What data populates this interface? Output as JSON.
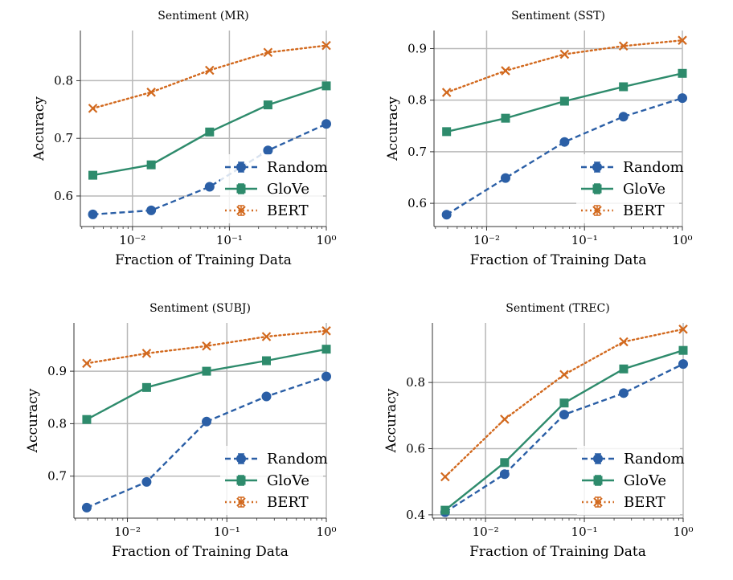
{
  "chart_data": [
    {
      "type": "line",
      "title": "Sentiment (MR)",
      "xlabel": "Fraction of Training Data",
      "ylabel": "Accuracy",
      "xscale": "log",
      "x": [
        0.0039,
        0.0156,
        0.0625,
        0.25,
        1.0
      ],
      "xlim": [
        0.0029,
        1.0
      ],
      "ylim": [
        0.547,
        0.887
      ],
      "yticks": [
        0.6,
        0.7,
        0.8
      ],
      "ytick_labels": [
        "0.6",
        "0.7",
        "0.8"
      ],
      "xtick_labels": [
        "10⁻²",
        "10⁻¹",
        "10⁰"
      ],
      "grid": true,
      "legend_position": "lower-right",
      "series": [
        {
          "name": "Random",
          "values": [
            0.568,
            0.575,
            0.616,
            0.679,
            0.725
          ]
        },
        {
          "name": "GloVe",
          "values": [
            0.636,
            0.654,
            0.711,
            0.758,
            0.791
          ]
        },
        {
          "name": "BERT",
          "values": [
            0.752,
            0.78,
            0.818,
            0.849,
            0.861
          ]
        }
      ]
    },
    {
      "type": "line",
      "title": "Sentiment (SST)",
      "xlabel": "Fraction of Training Data",
      "ylabel": "Accuracy",
      "xscale": "log",
      "x": [
        0.0039,
        0.0156,
        0.0625,
        0.25,
        1.0
      ],
      "xlim": [
        0.0029,
        1.0
      ],
      "ylim": [
        0.555,
        0.935
      ],
      "yticks": [
        0.6,
        0.7,
        0.8,
        0.9
      ],
      "ytick_labels": [
        "0.6",
        "0.7",
        "0.8",
        "0.9"
      ],
      "xtick_labels": [
        "10⁻²",
        "10⁻¹",
        "10⁰"
      ],
      "grid": true,
      "legend_position": "lower-right",
      "series": [
        {
          "name": "Random",
          "values": [
            0.578,
            0.649,
            0.719,
            0.768,
            0.804
          ]
        },
        {
          "name": "GloVe",
          "values": [
            0.739,
            0.765,
            0.798,
            0.826,
            0.852
          ]
        },
        {
          "name": "BERT",
          "values": [
            0.815,
            0.857,
            0.889,
            0.905,
            0.916
          ]
        }
      ]
    },
    {
      "type": "line",
      "title": "Sentiment (SUBJ)",
      "xlabel": "Fraction of Training Data",
      "ylabel": "Accuracy",
      "xscale": "log",
      "x": [
        0.0039,
        0.0156,
        0.0625,
        0.25,
        1.0
      ],
      "xlim": [
        0.0029,
        1.0
      ],
      "ylim": [
        0.62,
        0.992
      ],
      "yticks": [
        0.7,
        0.8,
        0.9
      ],
      "ytick_labels": [
        "0.7",
        "0.8",
        "0.9"
      ],
      "xtick_labels": [
        "10⁻²",
        "10⁻¹",
        "10⁰"
      ],
      "grid": true,
      "legend_position": "lower-right",
      "series": [
        {
          "name": "Random",
          "values": [
            0.64,
            0.689,
            0.804,
            0.852,
            0.89
          ]
        },
        {
          "name": "GloVe",
          "values": [
            0.808,
            0.869,
            0.9,
            0.92,
            0.942
          ]
        },
        {
          "name": "BERT",
          "values": [
            0.915,
            0.934,
            0.948,
            0.966,
            0.977
          ]
        }
      ]
    },
    {
      "type": "line",
      "title": "Sentiment (TREC)",
      "xlabel": "Fraction of Training Data",
      "ylabel": "Accuracy",
      "xscale": "log",
      "x": [
        0.0039,
        0.0156,
        0.0625,
        0.25,
        1.0
      ],
      "xlim": [
        0.0029,
        1.0
      ],
      "ylim": [
        0.39,
        0.98
      ],
      "yticks": [
        0.4,
        0.6,
        0.8
      ],
      "ytick_labels": [
        "0.4",
        "0.6",
        "0.8"
      ],
      "xtick_labels": [
        "10⁻²",
        "10⁻¹",
        "10⁰"
      ],
      "grid": true,
      "legend_position": "lower-right",
      "series": [
        {
          "name": "Random",
          "values": [
            0.408,
            0.523,
            0.703,
            0.768,
            0.856
          ]
        },
        {
          "name": "GloVe",
          "values": [
            0.414,
            0.558,
            0.738,
            0.841,
            0.897
          ]
        },
        {
          "name": "BERT",
          "values": [
            0.515,
            0.689,
            0.824,
            0.923,
            0.961
          ]
        }
      ]
    }
  ],
  "series_styles": [
    {
      "name": "Random",
      "color": "#2b5fa6",
      "dash": "dashed",
      "marker": "circle"
    },
    {
      "name": "GloVe",
      "color": "#2e8b6c",
      "dash": "solid",
      "marker": "square"
    },
    {
      "name": "BERT",
      "color": "#d2691e",
      "dash": "dotted",
      "marker": "x"
    }
  ]
}
